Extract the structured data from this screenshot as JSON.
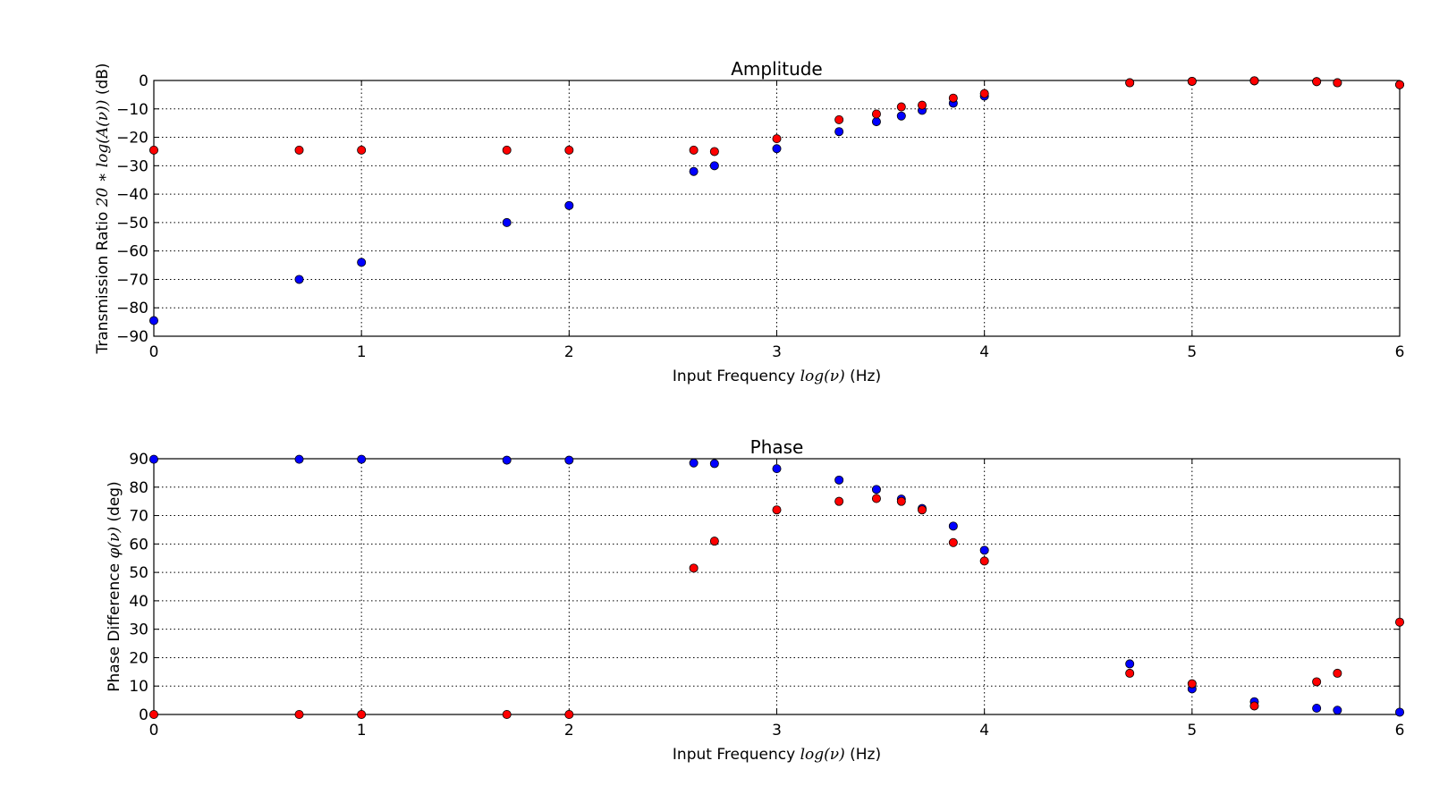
{
  "figure": {
    "background": "#ffffff"
  },
  "colors": {
    "blue": "#0000ff",
    "red": "#ff0000",
    "grid": "#000000",
    "marker_edge": "#000000"
  },
  "chart_data": [
    {
      "type": "scatter",
      "title": "Amplitude",
      "xlabel": "Input Frequency",
      "xlabel_math": "log(ν)",
      "xlabel_unit": "(Hz)",
      "ylabel": "Transmission Ratio",
      "ylabel_math": "20 ∗ log(A(ν))",
      "ylabel_unit": "(dB)",
      "xlim": [
        0,
        6
      ],
      "ylim": [
        -90,
        0
      ],
      "xticks": [
        0,
        1,
        2,
        3,
        4,
        5,
        6
      ],
      "yticks": [
        0,
        -10,
        -20,
        -30,
        -40,
        -50,
        -60,
        -70,
        -80,
        -90
      ],
      "grid": true,
      "series": [
        {
          "color": "#0000ff",
          "x": [
            0,
            0.7,
            1,
            1.7,
            2,
            2.6,
            2.7,
            3,
            3.3,
            3.48,
            3.6,
            3.7,
            3.85,
            4,
            4.7,
            5,
            5.3,
            5.6,
            5.7,
            6
          ],
          "y": [
            -84.5,
            -70,
            -64,
            -50,
            -44,
            -32,
            -30,
            -24,
            -18,
            -14.5,
            -12.5,
            -10.5,
            -8,
            -5.5,
            -0.8,
            -0.3,
            -0.1,
            -0.4,
            -0.8,
            -1.5
          ]
        },
        {
          "color": "#ff0000",
          "x": [
            0,
            0.7,
            1,
            1.7,
            2,
            2.6,
            2.7,
            3,
            3.3,
            3.48,
            3.6,
            3.7,
            3.85,
            4,
            4.7,
            5,
            5.3,
            5.6,
            5.7,
            6
          ],
          "y": [
            -24.5,
            -24.5,
            -24.5,
            -24.5,
            -24.5,
            -24.5,
            -25,
            -20.5,
            -13.8,
            -11.8,
            -9.3,
            -8.7,
            -6.2,
            -4.6,
            -0.8,
            -0.3,
            -0.1,
            -0.4,
            -0.8,
            -1.5
          ]
        }
      ]
    },
    {
      "type": "scatter",
      "title": "Phase",
      "xlabel": "Input Frequency",
      "xlabel_math": "log(ν)",
      "xlabel_unit": "(Hz)",
      "ylabel": "Phase Difference",
      "ylabel_math": "φ(ν)",
      "ylabel_unit": "(deg)",
      "xlim": [
        0,
        6
      ],
      "ylim": [
        0,
        90
      ],
      "xticks": [
        0,
        1,
        2,
        3,
        4,
        5,
        6
      ],
      "yticks": [
        90,
        80,
        70,
        60,
        50,
        40,
        30,
        20,
        10,
        0
      ],
      "grid": true,
      "series": [
        {
          "color": "#0000ff",
          "x": [
            0,
            0.7,
            1,
            1.7,
            2,
            2.6,
            2.7,
            3,
            3.3,
            3.48,
            3.6,
            3.7,
            3.85,
            4,
            4.7,
            5,
            5.3,
            5.6,
            5.7,
            6
          ],
          "y": [
            89.8,
            89.8,
            89.8,
            89.5,
            89.5,
            88.5,
            88.3,
            86.5,
            82.5,
            79.2,
            75.8,
            72.5,
            66.3,
            57.8,
            17.8,
            9,
            4.5,
            2.2,
            1.5,
            0.8
          ]
        },
        {
          "color": "#ff0000",
          "x": [
            0,
            0.7,
            1,
            1.7,
            2,
            2.6,
            2.7,
            3,
            3.3,
            3.48,
            3.6,
            3.7,
            3.85,
            4,
            4.7,
            5,
            5.3,
            5.6,
            5.7,
            6
          ],
          "y": [
            0,
            0,
            0,
            0,
            0,
            51.5,
            61,
            72,
            75,
            76,
            75,
            72,
            60.5,
            54,
            14.5,
            10.8,
            3,
            11.5,
            14.5,
            32.5
          ]
        }
      ]
    }
  ]
}
